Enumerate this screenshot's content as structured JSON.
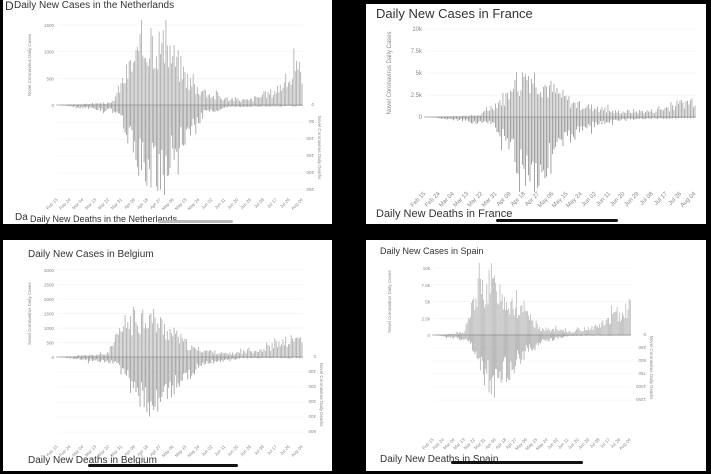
{
  "chart_data": [
    {
      "type": "bar",
      "title": "Daily New Cases in the Netherlands",
      "title_prefix": "D",
      "footer_title": "Daily New Deaths in the Netherlands",
      "footer_prefix": "Da",
      "cases_ylabel": "Novel Coronavirus Daily Cases",
      "deaths_ylabel": "Novel Coronavirus Daily Deaths",
      "cases_ticks": [
        "0",
        "500",
        "1000",
        "1500"
      ],
      "cases_ylim": [
        0,
        1500
      ],
      "deaths_ticks": [
        "0",
        "50",
        "100",
        "150",
        "200",
        "250"
      ],
      "deaths_ylim": [
        0,
        250
      ],
      "x_ticks": [
        "Feb 15",
        "Feb 24",
        "Mar 04",
        "Mar 13",
        "Mar 22",
        "Mar 31",
        "Apr 09",
        "Apr 18",
        "Apr 27",
        "May 06",
        "May 15",
        "May 24",
        "Jun 02",
        "Jun 11",
        "Jun 20",
        "Jun 29",
        "Jul 08",
        "Jul 17",
        "Jul 26",
        "Aug 04"
      ],
      "cases_peaks": [
        [
          0,
          0
        ],
        [
          0.22,
          40
        ],
        [
          0.3,
          800
        ],
        [
          0.38,
          1250
        ],
        [
          0.45,
          1100
        ],
        [
          0.55,
          380
        ],
        [
          0.65,
          140
        ],
        [
          0.78,
          90
        ],
        [
          0.88,
          250
        ],
        [
          1,
          700
        ]
      ],
      "deaths_peaks": [
        [
          0,
          0
        ],
        [
          0.25,
          20
        ],
        [
          0.33,
          170
        ],
        [
          0.4,
          210
        ],
        [
          0.5,
          110
        ],
        [
          0.6,
          25
        ],
        [
          0.7,
          5
        ],
        [
          1,
          3
        ]
      ]
    },
    {
      "type": "bar",
      "title": "Daily New Cases in France",
      "footer_title": "Daily New Deaths in France",
      "cases_ylabel": "Novel Coronavirus Daily Cases",
      "cases_ticks": [
        "0",
        "2.5k",
        "5k",
        "7.5k",
        "10k"
      ],
      "cases_ylim": [
        0,
        10000
      ],
      "deaths_ticks": [],
      "deaths_ylim": [
        0,
        1000
      ],
      "x_ticks": [
        "Feb 15",
        "Feb 24",
        "Mar 04",
        "Mar 13",
        "Mar 22",
        "Mar 31",
        "Apr 09",
        "Apr 18",
        "Apr 27",
        "May 06",
        "May 15",
        "May 24",
        "Jun 02",
        "Jun 11",
        "Jun 20",
        "Jun 29",
        "Jul 08",
        "Jul 17",
        "Jul 26",
        "Aug 04"
      ],
      "cases_peaks": [
        [
          0,
          0
        ],
        [
          0.2,
          200
        ],
        [
          0.3,
          2500
        ],
        [
          0.38,
          5000
        ],
        [
          0.45,
          3500
        ],
        [
          0.55,
          1500
        ],
        [
          0.7,
          600
        ],
        [
          0.85,
          700
        ],
        [
          1,
          2000
        ]
      ],
      "deaths_peaks": [
        [
          0,
          0
        ],
        [
          0.25,
          100
        ],
        [
          0.35,
          700
        ],
        [
          0.42,
          850
        ],
        [
          0.5,
          400
        ],
        [
          0.6,
          120
        ],
        [
          0.75,
          30
        ],
        [
          1,
          10
        ]
      ]
    },
    {
      "type": "bar",
      "title": "Daily New Cases in Belgium",
      "footer_title": "Daily New Deaths in Belgium",
      "cases_ylabel": "Novel Coronavirus Daily Cases",
      "deaths_ylabel": "Novel Coronavirus Daily Deaths",
      "cases_ticks": [
        "0",
        "500",
        "1000",
        "1500",
        "2000",
        "2500",
        "3000"
      ],
      "cases_ylim": [
        0,
        3000
      ],
      "deaths_ticks": [
        "0",
        "100",
        "200",
        "300",
        "400",
        "500"
      ],
      "deaths_ylim": [
        0,
        500
      ],
      "x_ticks": [
        "Feb 15",
        "Feb 24",
        "Mar 04",
        "Mar 13",
        "Mar 22",
        "Mar 31",
        "Apr 09",
        "Apr 18",
        "Apr 27",
        "May 06",
        "May 15",
        "May 24",
        "Jun 02",
        "Jun 11",
        "Jun 20",
        "Jun 29",
        "Jul 08",
        "Jul 17",
        "Jul 26",
        "Aug 04"
      ],
      "cases_peaks": [
        [
          0,
          0
        ],
        [
          0.2,
          100
        ],
        [
          0.28,
          1200
        ],
        [
          0.36,
          1500
        ],
        [
          0.44,
          1000
        ],
        [
          0.55,
          300
        ],
        [
          0.7,
          100
        ],
        [
          0.85,
          300
        ],
        [
          1,
          700
        ]
      ],
      "deaths_peaks": [
        [
          0,
          0
        ],
        [
          0.25,
          40
        ],
        [
          0.32,
          250
        ],
        [
          0.4,
          330
        ],
        [
          0.48,
          180
        ],
        [
          0.6,
          40
        ],
        [
          0.75,
          8
        ],
        [
          1,
          5
        ]
      ]
    },
    {
      "type": "bar",
      "title": "Daily New Cases in Spain",
      "footer_title": "Daily New Deaths in Spain",
      "cases_ylabel": "Novel Coronavirus Daily Cases",
      "deaths_ylabel": "Novel Coronavirus Daily Deaths",
      "cases_ticks": [
        "0",
        "2.5k",
        "5k",
        "7.5k",
        "10k"
      ],
      "cases_ylim": [
        0,
        10000
      ],
      "deaths_ticks": [
        "0",
        "250",
        "500",
        "750",
        "1000",
        "1250"
      ],
      "deaths_ylim": [
        0,
        1250
      ],
      "x_ticks": [
        "Feb 15",
        "Feb 24",
        "Mar 04",
        "Mar 13",
        "Mar 22",
        "Mar 31",
        "Apr 09",
        "Apr 18",
        "Apr 27",
        "May 06",
        "May 15",
        "May 24",
        "Jun 02",
        "Jun 11",
        "Jun 20",
        "Jun 29",
        "Jul 08",
        "Jul 17",
        "Jul 26",
        "Aug 04"
      ],
      "cases_peaks": [
        [
          0,
          0
        ],
        [
          0.15,
          300
        ],
        [
          0.22,
          6500
        ],
        [
          0.3,
          7500
        ],
        [
          0.4,
          4500
        ],
        [
          0.55,
          900
        ],
        [
          0.7,
          500
        ],
        [
          0.85,
          1500
        ],
        [
          1,
          4500
        ]
      ],
      "deaths_peaks": [
        [
          0,
          0
        ],
        [
          0.18,
          100
        ],
        [
          0.26,
          800
        ],
        [
          0.32,
          920
        ],
        [
          0.42,
          500
        ],
        [
          0.55,
          120
        ],
        [
          0.7,
          15
        ],
        [
          1,
          10
        ]
      ]
    }
  ]
}
